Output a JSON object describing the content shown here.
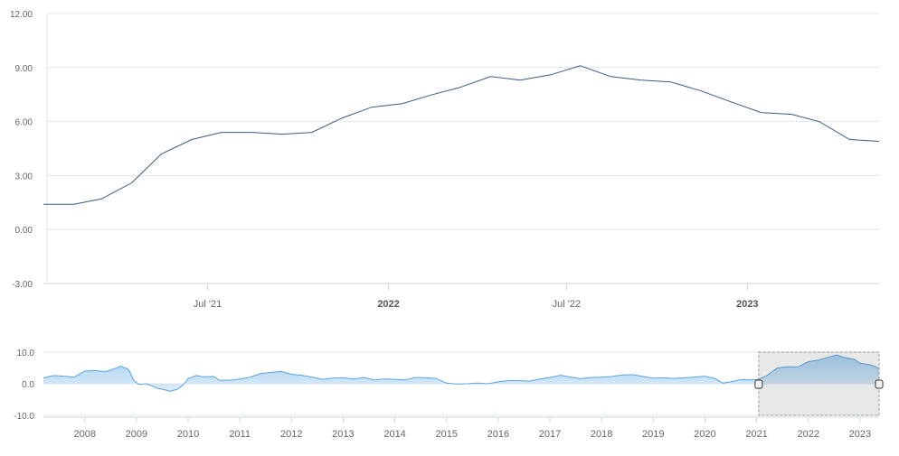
{
  "chart_data": [
    {
      "type": "line",
      "role": "main",
      "ylim": [
        -3,
        12
      ],
      "yticks": [
        "12.00",
        "9.00",
        "6.00",
        "3.00",
        "0.00",
        "-3.00"
      ],
      "xticks": [
        {
          "label": "Jul '21",
          "x": "2021-07-01",
          "bold": false
        },
        {
          "label": "2022",
          "x": "2022-01-01",
          "bold": true
        },
        {
          "label": "Jul '22",
          "x": "2022-07-01",
          "bold": false
        },
        {
          "label": "2023",
          "x": "2023-01-01",
          "bold": true
        }
      ],
      "xrange": [
        "2021-01-15",
        "2023-05-15"
      ],
      "grid": true,
      "series": [
        {
          "color": "#3e5a7e",
          "points": [
            [
              "2021-01-15",
              1.4
            ],
            [
              "2021-02-15",
              1.4
            ],
            [
              "2021-03-15",
              1.7
            ],
            [
              "2021-04-15",
              2.6
            ],
            [
              "2021-05-15",
              4.2
            ],
            [
              "2021-06-15",
              5.0
            ],
            [
              "2021-07-15",
              5.4
            ],
            [
              "2021-08-15",
              5.4
            ],
            [
              "2021-09-15",
              5.3
            ],
            [
              "2021-10-15",
              5.4
            ],
            [
              "2021-11-15",
              6.2
            ],
            [
              "2021-12-15",
              6.8
            ],
            [
              "2022-01-15",
              7.0
            ],
            [
              "2022-02-15",
              7.5
            ],
            [
              "2022-03-15",
              7.9
            ],
            [
              "2022-04-15",
              8.5
            ],
            [
              "2022-05-15",
              8.3
            ],
            [
              "2022-06-15",
              8.6
            ],
            [
              "2022-07-15",
              9.1
            ],
            [
              "2022-08-15",
              8.5
            ],
            [
              "2022-09-15",
              8.3
            ],
            [
              "2022-10-15",
              8.2
            ],
            [
              "2022-11-15",
              7.7
            ],
            [
              "2022-12-15",
              7.1
            ],
            [
              "2023-01-15",
              6.5
            ],
            [
              "2023-02-15",
              6.4
            ],
            [
              "2023-03-15",
              6.0
            ],
            [
              "2023-04-15",
              5.0
            ],
            [
              "2023-05-15",
              4.9
            ]
          ]
        }
      ]
    },
    {
      "type": "area",
      "role": "navigator",
      "ylim": [
        -10,
        10
      ],
      "yticks": [
        "10.0",
        "0.0",
        "-10.0"
      ],
      "xticks": [
        "2008",
        "2009",
        "2010",
        "2011",
        "2012",
        "2013",
        "2014",
        "2015",
        "2016",
        "2017",
        "2018",
        "2019",
        "2020",
        "2021",
        "2022",
        "2023"
      ],
      "xrange": [
        2007.2,
        2023.37
      ],
      "selection": [
        2021.04,
        2023.37
      ],
      "series": [
        {
          "color": "#5aa3e2",
          "points": [
            [
              2007.2,
              1.9
            ],
            [
              2007.4,
              2.6
            ],
            [
              2007.6,
              2.4
            ],
            [
              2007.8,
              2.1
            ],
            [
              2008.0,
              4.0
            ],
            [
              2008.2,
              4.2
            ],
            [
              2008.4,
              3.8
            ],
            [
              2008.6,
              4.9
            ],
            [
              2008.7,
              5.6
            ],
            [
              2008.85,
              4.5
            ],
            [
              2008.95,
              1.0
            ],
            [
              2009.05,
              -0.2
            ],
            [
              2009.2,
              0.0
            ],
            [
              2009.4,
              -1.4
            ],
            [
              2009.6,
              -2.1
            ],
            [
              2009.65,
              -2.4
            ],
            [
              2009.8,
              -1.7
            ],
            [
              2009.9,
              -0.4
            ],
            [
              2010.0,
              1.6
            ],
            [
              2010.15,
              2.6
            ],
            [
              2010.3,
              2.2
            ],
            [
              2010.5,
              2.3
            ],
            [
              2010.6,
              1.1
            ],
            [
              2010.8,
              1.1
            ],
            [
              2011.0,
              1.5
            ],
            [
              2011.2,
              2.1
            ],
            [
              2011.4,
              3.2
            ],
            [
              2011.6,
              3.6
            ],
            [
              2011.8,
              3.9
            ],
            [
              2012.0,
              3.0
            ],
            [
              2012.2,
              2.7
            ],
            [
              2012.4,
              2.1
            ],
            [
              2012.6,
              1.4
            ],
            [
              2012.8,
              1.8
            ],
            [
              2013.0,
              1.9
            ],
            [
              2013.2,
              1.5
            ],
            [
              2013.4,
              2.0
            ],
            [
              2013.6,
              1.2
            ],
            [
              2013.8,
              1.5
            ],
            [
              2014.0,
              1.4
            ],
            [
              2014.2,
              1.2
            ],
            [
              2014.4,
              2.0
            ],
            [
              2014.6,
              1.9
            ],
            [
              2014.8,
              1.7
            ],
            [
              2015.0,
              0.2
            ],
            [
              2015.2,
              -0.1
            ],
            [
              2015.4,
              0.0
            ],
            [
              2015.6,
              0.2
            ],
            [
              2015.8,
              0.0
            ],
            [
              2016.0,
              0.6
            ],
            [
              2016.2,
              1.0
            ],
            [
              2016.4,
              1.0
            ],
            [
              2016.6,
              0.8
            ],
            [
              2016.8,
              1.5
            ],
            [
              2017.0,
              2.0
            ],
            [
              2017.2,
              2.7
            ],
            [
              2017.4,
              2.1
            ],
            [
              2017.6,
              1.6
            ],
            [
              2017.8,
              2.0
            ],
            [
              2018.0,
              2.1
            ],
            [
              2018.2,
              2.3
            ],
            [
              2018.4,
              2.8
            ],
            [
              2018.6,
              2.9
            ],
            [
              2018.8,
              2.3
            ],
            [
              2019.0,
              1.8
            ],
            [
              2019.2,
              1.9
            ],
            [
              2019.4,
              1.7
            ],
            [
              2019.6,
              1.9
            ],
            [
              2019.8,
              2.1
            ],
            [
              2020.0,
              2.4
            ],
            [
              2020.2,
              1.6
            ],
            [
              2020.35,
              0.2
            ],
            [
              2020.5,
              0.6
            ],
            [
              2020.7,
              1.3
            ],
            [
              2020.9,
              1.2
            ],
            [
              2021.04,
              1.4
            ],
            [
              2021.2,
              2.6
            ],
            [
              2021.4,
              5.0
            ],
            [
              2021.6,
              5.4
            ],
            [
              2021.8,
              5.3
            ],
            [
              2022.0,
              7.0
            ],
            [
              2022.2,
              7.5
            ],
            [
              2022.4,
              8.5
            ],
            [
              2022.55,
              9.1
            ],
            [
              2022.7,
              8.3
            ],
            [
              2022.9,
              7.7
            ],
            [
              2023.0,
              6.5
            ],
            [
              2023.2,
              6.0
            ],
            [
              2023.37,
              4.9
            ]
          ]
        }
      ]
    }
  ]
}
